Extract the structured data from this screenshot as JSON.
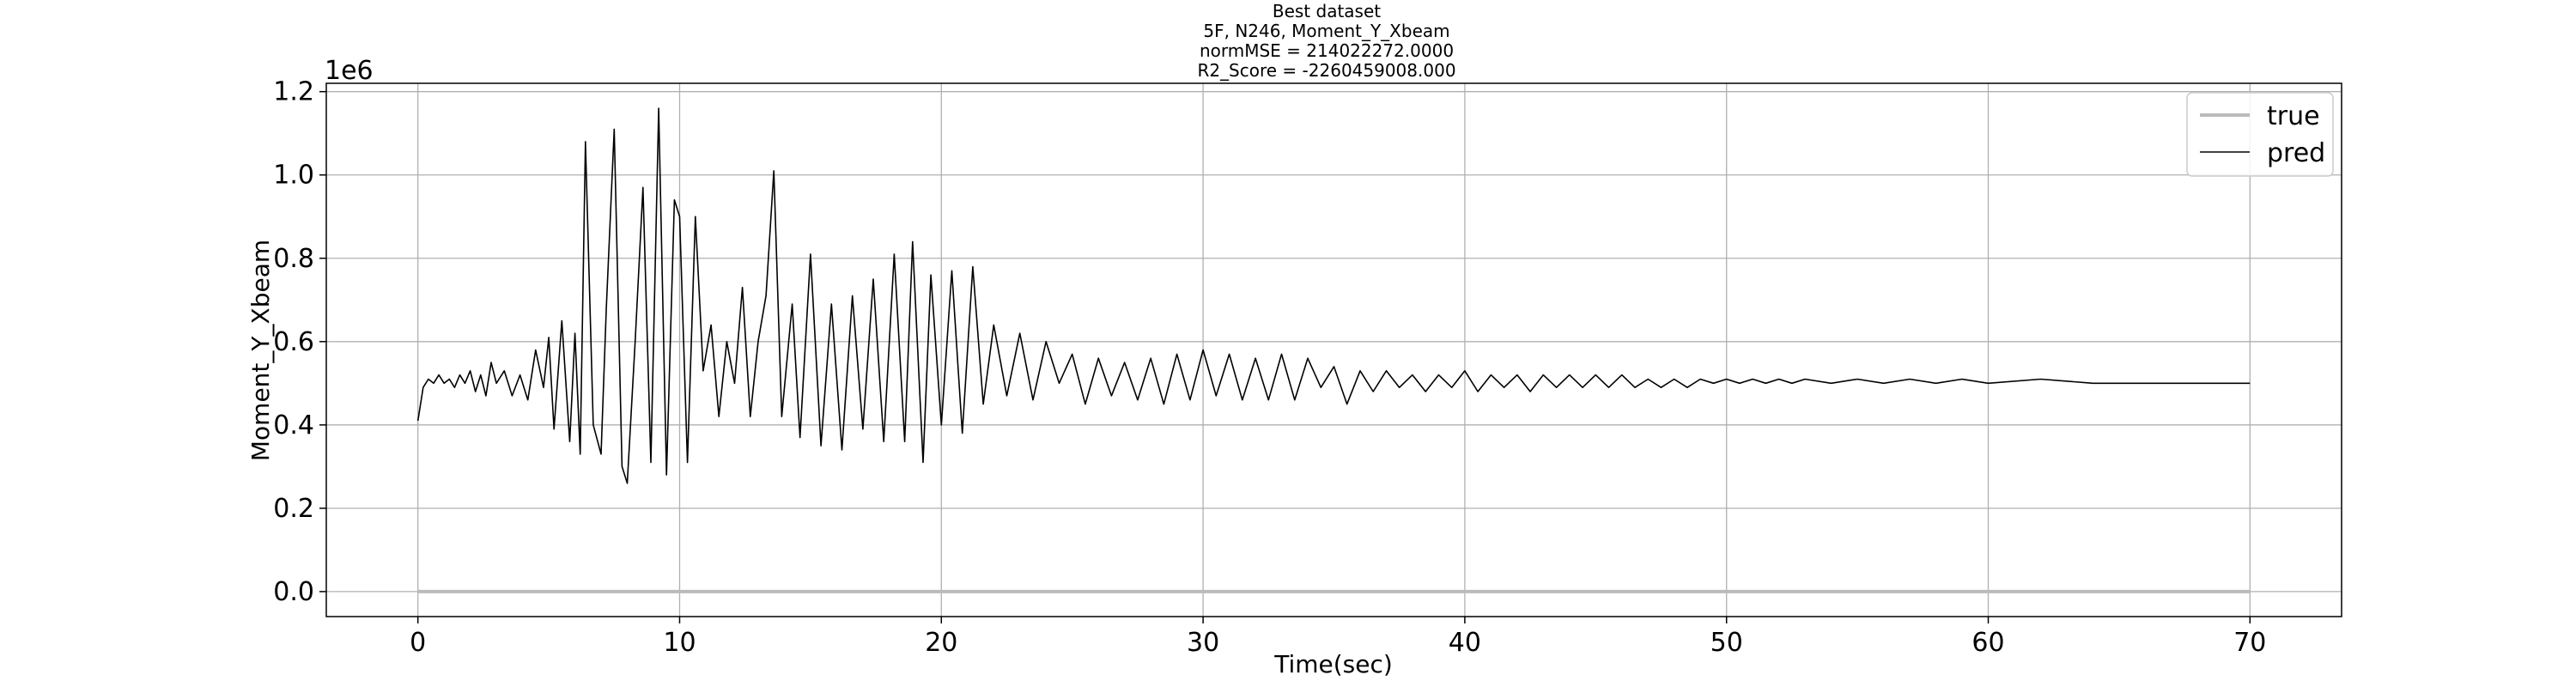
{
  "chart_data": {
    "type": "line",
    "title_lines": [
      "Best dataset",
      "5F, N246, Moment_Y_Xbeam",
      "normMSE = 214022272.0000",
      "R2_Score = -2260459008.000"
    ],
    "xlabel": "Time(sec)",
    "ylabel": "Moment_Y_Xbeam",
    "y_offset_label": "1e6",
    "xlim": [
      -3.5,
      73.5
    ],
    "ylim": [
      -0.06,
      1.22
    ],
    "y_scale_factor": 1000000,
    "x_ticks": [
      0,
      10,
      20,
      30,
      40,
      50,
      60,
      70
    ],
    "x_tick_labels": [
      "0",
      "10",
      "20",
      "30",
      "40",
      "50",
      "60",
      "70"
    ],
    "y_ticks": [
      0.0,
      0.2,
      0.4,
      0.6,
      0.8,
      1.0,
      1.2
    ],
    "y_tick_labels": [
      "0.0",
      "0.2",
      "0.4",
      "0.6",
      "0.8",
      "1.0",
      "1.2"
    ],
    "grid": true,
    "legend_position": "top-right",
    "series": [
      {
        "name": "true",
        "color": "#bbbbbb",
        "x": [
          0,
          70
        ],
        "y": [
          0.0,
          0.0
        ]
      },
      {
        "name": "pred",
        "color": "#000000",
        "x": [
          0.0,
          0.2,
          0.4,
          0.6,
          0.8,
          1.0,
          1.2,
          1.4,
          1.6,
          1.8,
          2.0,
          2.2,
          2.4,
          2.6,
          2.8,
          3.0,
          3.3,
          3.6,
          3.9,
          4.2,
          4.5,
          4.8,
          5.0,
          5.2,
          5.5,
          5.8,
          6.0,
          6.2,
          6.4,
          6.7,
          7.0,
          7.2,
          7.5,
          7.8,
          8.0,
          8.3,
          8.6,
          8.9,
          9.2,
          9.5,
          9.8,
          10.0,
          10.3,
          10.6,
          10.9,
          11.2,
          11.5,
          11.8,
          12.1,
          12.4,
          12.7,
          13.0,
          13.3,
          13.6,
          13.9,
          14.3,
          14.6,
          15.0,
          15.4,
          15.8,
          16.2,
          16.6,
          17.0,
          17.4,
          17.8,
          18.2,
          18.6,
          18.9,
          19.3,
          19.6,
          20.0,
          20.4,
          20.8,
          21.2,
          21.6,
          22.0,
          22.5,
          23.0,
          23.5,
          24.0,
          24.5,
          25.0,
          25.5,
          26.0,
          26.5,
          27.0,
          27.5,
          28.0,
          28.5,
          29.0,
          29.5,
          30.0,
          30.5,
          31.0,
          31.5,
          32.0,
          32.5,
          33.0,
          33.5,
          34.0,
          34.5,
          35.0,
          35.5,
          36.0,
          36.5,
          37.0,
          37.5,
          38.0,
          38.5,
          39.0,
          39.5,
          40.0,
          40.5,
          41.0,
          41.5,
          42.0,
          42.5,
          43.0,
          43.5,
          44.0,
          44.5,
          45.0,
          45.5,
          46.0,
          46.5,
          47.0,
          47.5,
          48.0,
          48.5,
          49.0,
          49.5,
          50.0,
          50.5,
          51.0,
          51.5,
          52.0,
          52.5,
          53.0,
          54.0,
          55.0,
          56.0,
          57.0,
          58.0,
          59.0,
          60.0,
          62.0,
          64.0,
          66.0,
          68.0,
          70.0
        ],
        "y": [
          0.41,
          0.49,
          0.51,
          0.5,
          0.52,
          0.5,
          0.51,
          0.49,
          0.52,
          0.5,
          0.53,
          0.48,
          0.52,
          0.47,
          0.55,
          0.5,
          0.53,
          0.47,
          0.52,
          0.46,
          0.58,
          0.49,
          0.61,
          0.39,
          0.65,
          0.36,
          0.62,
          0.33,
          1.08,
          0.4,
          0.33,
          0.68,
          1.11,
          0.3,
          0.26,
          0.6,
          0.97,
          0.31,
          1.16,
          0.28,
          0.94,
          0.9,
          0.31,
          0.9,
          0.53,
          0.64,
          0.42,
          0.6,
          0.5,
          0.73,
          0.42,
          0.6,
          0.71,
          1.01,
          0.42,
          0.69,
          0.37,
          0.81,
          0.35,
          0.69,
          0.34,
          0.71,
          0.39,
          0.75,
          0.36,
          0.81,
          0.36,
          0.84,
          0.31,
          0.76,
          0.4,
          0.77,
          0.38,
          0.78,
          0.45,
          0.64,
          0.47,
          0.62,
          0.46,
          0.6,
          0.5,
          0.57,
          0.45,
          0.56,
          0.47,
          0.55,
          0.46,
          0.56,
          0.45,
          0.57,
          0.46,
          0.58,
          0.47,
          0.57,
          0.46,
          0.56,
          0.46,
          0.57,
          0.46,
          0.56,
          0.49,
          0.54,
          0.45,
          0.53,
          0.48,
          0.53,
          0.49,
          0.52,
          0.48,
          0.52,
          0.49,
          0.53,
          0.48,
          0.52,
          0.49,
          0.52,
          0.48,
          0.52,
          0.49,
          0.52,
          0.49,
          0.52,
          0.49,
          0.52,
          0.49,
          0.51,
          0.49,
          0.51,
          0.49,
          0.51,
          0.5,
          0.51,
          0.5,
          0.51,
          0.5,
          0.51,
          0.5,
          0.51,
          0.5,
          0.51,
          0.5,
          0.51,
          0.5,
          0.51,
          0.5,
          0.51,
          0.5,
          0.5,
          0.5,
          0.5
        ]
      }
    ]
  }
}
